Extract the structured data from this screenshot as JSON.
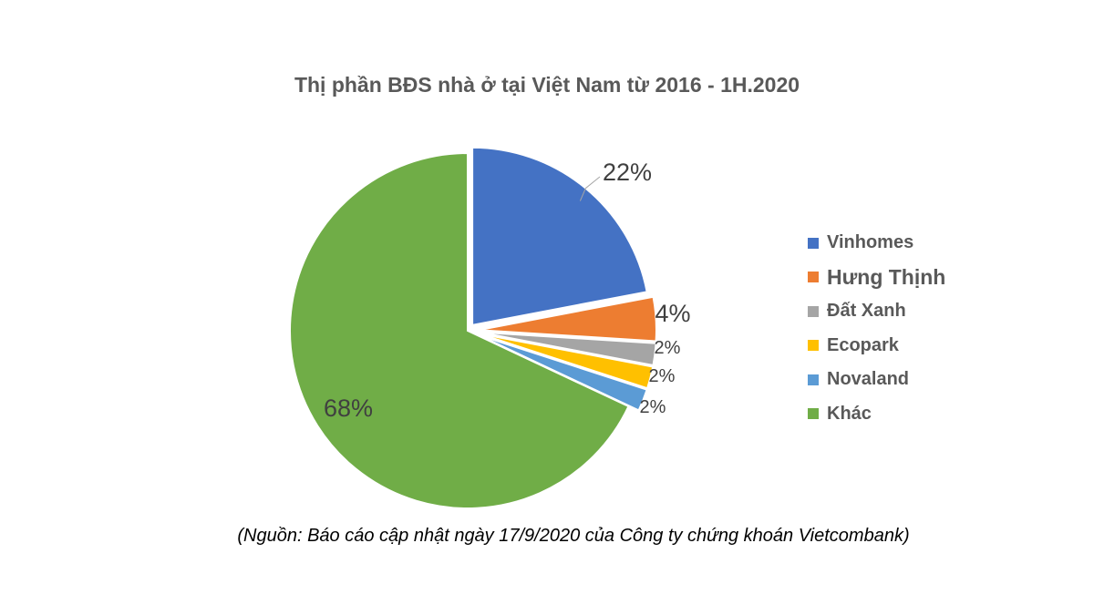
{
  "chart_data": {
    "type": "pie",
    "title": "Thị phần BĐS nhà ở tại Việt Nam từ 2016 - 1H.2020",
    "categories": [
      "Vinhomes",
      "Hưng Thịnh",
      "Đất Xanh",
      "Ecopark",
      "Novaland",
      "Khác"
    ],
    "values": [
      22,
      4,
      2,
      2,
      2,
      68
    ],
    "data_labels": [
      "22%",
      "4%",
      "2%",
      "2%",
      "2%",
      "68%"
    ],
    "colors": [
      "#4472C4",
      "#ED7D31",
      "#A5A5A5",
      "#FFC000",
      "#5B9BD5",
      "#70AD47"
    ],
    "legend_position": "right",
    "exploded": true
  },
  "source_note": "(Nguồn: Báo cáo cập nhật ngày 17/9/2020 của Công ty chứng khoán Vietcombank)"
}
